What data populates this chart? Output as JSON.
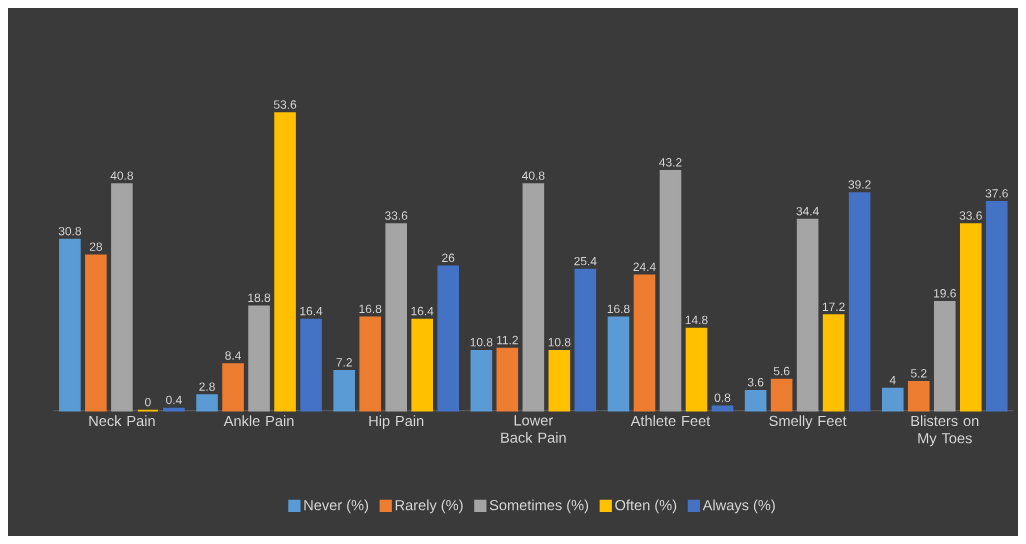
{
  "chart_data": {
    "type": "bar",
    "categories": [
      "Neck Pain",
      "Ankle Pain",
      "Hip Pain",
      "Lower Back Pain",
      "Athlete Feet",
      "Smelly Feet",
      "Blisters on My Toes"
    ],
    "series": [
      {
        "name": "Never  (%)",
        "color": "#5b9bd5",
        "values": [
          30.8,
          2.8,
          7.2,
          10.8,
          16.8,
          3.6,
          4
        ]
      },
      {
        "name": "Rarely  (%)",
        "color": "#ed7d31",
        "values": [
          28,
          8.4,
          16.8,
          11.2,
          24.4,
          5.6,
          5.2
        ]
      },
      {
        "name": "Sometimes  (%)",
        "color": "#a5a5a5",
        "values": [
          40.8,
          18.8,
          33.6,
          40.8,
          43.2,
          34.4,
          19.6
        ]
      },
      {
        "name": "Often  (%)",
        "color": "#ffc000",
        "values": [
          0,
          53.6,
          16.4,
          10.8,
          14.8,
          17.2,
          33.6
        ]
      },
      {
        "name": "Always  (%)",
        "color": "#4472c4",
        "values": [
          0.4,
          16.4,
          26,
          25.4,
          0.8,
          39.2,
          37.6
        ]
      }
    ],
    "data_labels": true,
    "legend": "bottom"
  }
}
